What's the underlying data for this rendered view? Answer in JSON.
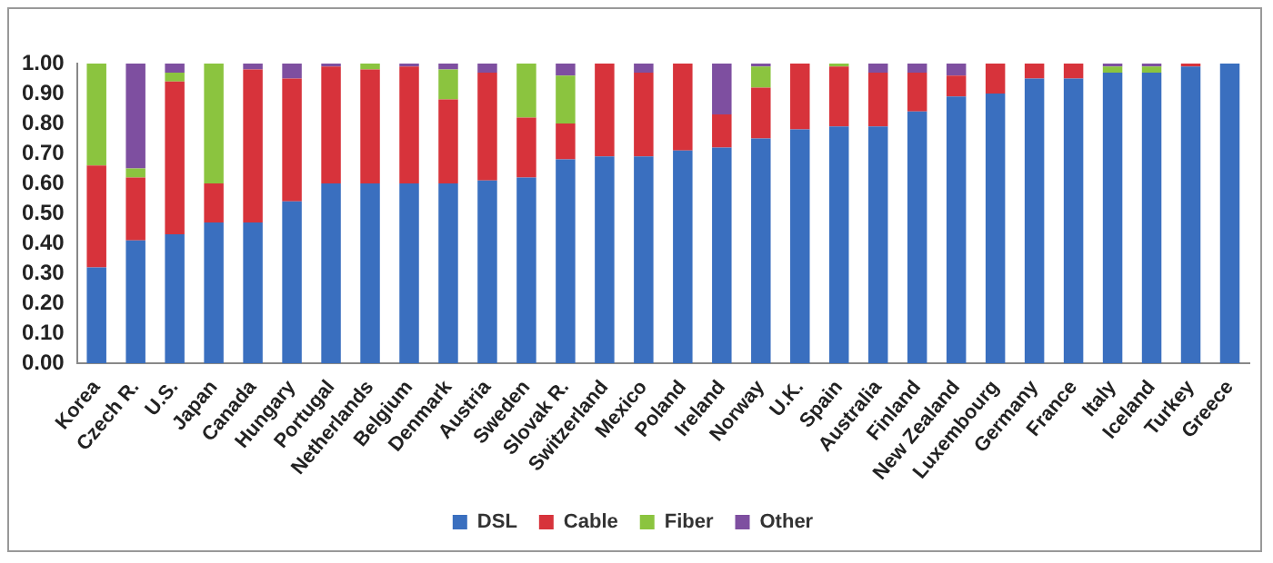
{
  "chart_data": {
    "type": "bar",
    "stacked": true,
    "categories": [
      "Korea",
      "Czech R.",
      "U.S.",
      "Japan",
      "Canada",
      "Hungary",
      "Portugal",
      "Netherlands",
      "Belgium",
      "Denmark",
      "Austria",
      "Sweden",
      "Slovak R.",
      "Switzerland",
      "Mexico",
      "Poland",
      "Ireland",
      "Norway",
      "U.K.",
      "Spain",
      "Australia",
      "Finland",
      "New Zealand",
      "Luxembourg",
      "Germany",
      "France",
      "Italy",
      "Iceland",
      "Turkey",
      "Greece"
    ],
    "series": [
      {
        "name": "DSL",
        "color": "#3a6fbf",
        "values": [
          0.32,
          0.41,
          0.43,
          0.47,
          0.47,
          0.54,
          0.6,
          0.6,
          0.6,
          0.6,
          0.61,
          0.62,
          0.68,
          0.69,
          0.69,
          0.71,
          0.72,
          0.75,
          0.78,
          0.79,
          0.79,
          0.84,
          0.89,
          0.9,
          0.95,
          0.95,
          0.97,
          0.97,
          0.99,
          1.0
        ]
      },
      {
        "name": "Cable",
        "color": "#d7333b",
        "values": [
          0.34,
          0.21,
          0.51,
          0.13,
          0.51,
          0.41,
          0.39,
          0.38,
          0.39,
          0.28,
          0.36,
          0.2,
          0.12,
          0.31,
          0.28,
          0.29,
          0.11,
          0.17,
          0.22,
          0.2,
          0.18,
          0.13,
          0.07,
          0.1,
          0.05,
          0.05,
          0,
          0,
          0.01,
          0
        ]
      },
      {
        "name": "Fiber",
        "color": "#8bc43f",
        "values": [
          0.34,
          0.03,
          0.03,
          0.4,
          0,
          0,
          0,
          0.02,
          0,
          0.1,
          0,
          0.18,
          0.16,
          0,
          0,
          0,
          0,
          0.07,
          0,
          0.01,
          0,
          0,
          0,
          0,
          0,
          0,
          0.02,
          0.02,
          0,
          0
        ]
      },
      {
        "name": "Other",
        "color": "#7e4fa0",
        "values": [
          0,
          0.35,
          0.03,
          0,
          0.02,
          0.05,
          0.01,
          0,
          0.01,
          0.02,
          0.03,
          0,
          0.04,
          0,
          0.03,
          0,
          0.17,
          0.01,
          0,
          0,
          0.03,
          0.03,
          0.04,
          0,
          0,
          0,
          0.01,
          0.01,
          0,
          0
        ]
      }
    ],
    "ylim": [
      0,
      1
    ],
    "yticks": [
      {
        "value": 0,
        "label": "0.00"
      },
      {
        "value": 0.1,
        "label": "0.10"
      },
      {
        "value": 0.2,
        "label": "0.20"
      },
      {
        "value": 0.3,
        "label": "0.30"
      },
      {
        "value": 0.4,
        "label": "0.40"
      },
      {
        "value": 0.5,
        "label": "0.50"
      },
      {
        "value": 0.6,
        "label": "0.60"
      },
      {
        "value": 0.7,
        "label": "0.70"
      },
      {
        "value": 0.8,
        "label": "0.80"
      },
      {
        "value": 0.9,
        "label": "0.90"
      },
      {
        "value": 1,
        "label": "1.00"
      }
    ],
    "grid": false,
    "legend": "bottom"
  }
}
